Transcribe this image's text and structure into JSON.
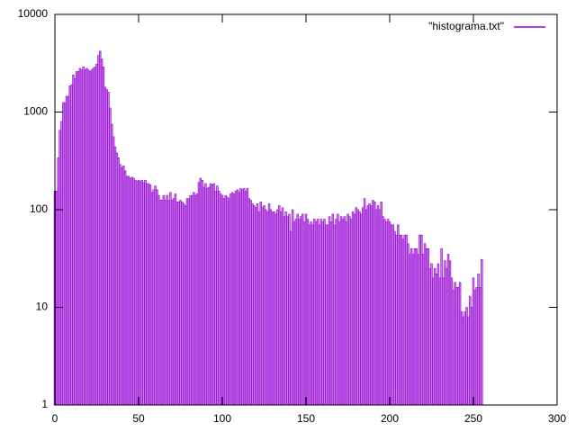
{
  "chart_data": {
    "type": "bar",
    "legend": "\"histograma.txt\"",
    "legend_position": "top-right",
    "color": "#9400d3",
    "log_y": true,
    "x": [
      0,
      1,
      2,
      3,
      4,
      5,
      6,
      7,
      8,
      9,
      10,
      11,
      12,
      13,
      14,
      15,
      16,
      17,
      18,
      19,
      20,
      21,
      22,
      23,
      24,
      25,
      26,
      27,
      28,
      29,
      30,
      31,
      32,
      33,
      34,
      35,
      36,
      37,
      38,
      39,
      40,
      41,
      42,
      43,
      44,
      45,
      46,
      47,
      48,
      49,
      50,
      51,
      52,
      53,
      54,
      55,
      56,
      57,
      58,
      59,
      60,
      61,
      62,
      63,
      64,
      65,
      66,
      67,
      68,
      69,
      70,
      71,
      72,
      73,
      74,
      75,
      76,
      77,
      78,
      79,
      80,
      81,
      82,
      83,
      84,
      85,
      86,
      87,
      88,
      89,
      90,
      91,
      92,
      93,
      94,
      95,
      96,
      97,
      98,
      99,
      100,
      101,
      102,
      103,
      104,
      105,
      106,
      107,
      108,
      109,
      110,
      111,
      112,
      113,
      114,
      115,
      116,
      117,
      118,
      119,
      120,
      121,
      122,
      123,
      124,
      125,
      126,
      127,
      128,
      129,
      130,
      131,
      132,
      133,
      134,
      135,
      136,
      137,
      138,
      139,
      140,
      141,
      142,
      143,
      144,
      145,
      146,
      147,
      148,
      149,
      150,
      151,
      152,
      153,
      154,
      155,
      156,
      157,
      158,
      159,
      160,
      161,
      162,
      163,
      164,
      165,
      166,
      167,
      168,
      169,
      170,
      171,
      172,
      173,
      174,
      175,
      176,
      177,
      178,
      179,
      180,
      181,
      182,
      183,
      184,
      185,
      186,
      187,
      188,
      189,
      190,
      191,
      192,
      193,
      194,
      195,
      196,
      197,
      198,
      199,
      200,
      201,
      202,
      203,
      204,
      205,
      206,
      207,
      208,
      209,
      210,
      211,
      212,
      213,
      214,
      215,
      216,
      217,
      218,
      219,
      220,
      221,
      222,
      223,
      224,
      225,
      226,
      227,
      228,
      229,
      230,
      231,
      232,
      233,
      234,
      235,
      236,
      237,
      238,
      239,
      240,
      241,
      242,
      243,
      244,
      245,
      246,
      247,
      248,
      249,
      250,
      251,
      252,
      253,
      254,
      255
    ],
    "values": [
      155,
      155,
      340,
      650,
      800,
      1250,
      1250,
      1450,
      1450,
      1850,
      1900,
      2400,
      2200,
      2600,
      2600,
      2800,
      2700,
      2900,
      2700,
      2800,
      2700,
      2600,
      2700,
      2800,
      2900,
      3100,
      3800,
      4200,
      3500,
      2900,
      1800,
      1700,
      1600,
      1100,
      750,
      560,
      440,
      380,
      340,
      290,
      270,
      280,
      250,
      220,
      220,
      210,
      215,
      210,
      200,
      195,
      200,
      195,
      200,
      190,
      200,
      185,
      185,
      180,
      150,
      160,
      175,
      160,
      140,
      125,
      125,
      140,
      125,
      140,
      125,
      150,
      125,
      130,
      145,
      120,
      120,
      125,
      120,
      115,
      110,
      130,
      130,
      140,
      140,
      150,
      140,
      145,
      190,
      210,
      200,
      170,
      185,
      165,
      170,
      185,
      180,
      185,
      155,
      175,
      155,
      145,
      140,
      130,
      140,
      135,
      130,
      145,
      150,
      145,
      155,
      160,
      150,
      165,
      160,
      165,
      155,
      165,
      130,
      125,
      115,
      110,
      105,
      115,
      95,
      120,
      105,
      110,
      100,
      95,
      115,
      100,
      95,
      95,
      90,
      100,
      110,
      95,
      105,
      85,
      95,
      85,
      90,
      60,
      100,
      75,
      80,
      90,
      80,
      85,
      90,
      75,
      90,
      80,
      70,
      75,
      70,
      80,
      75,
      80,
      70,
      80,
      75,
      80,
      70,
      70,
      85,
      75,
      90,
      70,
      80,
      90,
      75,
      85,
      80,
      85,
      75,
      90,
      85,
      80,
      95,
      90,
      105,
      100,
      95,
      90,
      105,
      130,
      100,
      110,
      115,
      110,
      125,
      120,
      100,
      110,
      100,
      120,
      85,
      80,
      75,
      80,
      75,
      70,
      70,
      60,
      55,
      70,
      55,
      55,
      50,
      55,
      55,
      45,
      35,
      40,
      35,
      40,
      40,
      35,
      55,
      55,
      35,
      45,
      40,
      40,
      25,
      28,
      20,
      25,
      22,
      28,
      20,
      40,
      20,
      30,
      25,
      35,
      30,
      20,
      15,
      18,
      16,
      16,
      18,
      9,
      8,
      9,
      10,
      8,
      13,
      10,
      20,
      15,
      16,
      22,
      16,
      31
    ],
    "xlim": [
      0,
      300
    ],
    "xticks": [
      0,
      50,
      100,
      150,
      200,
      250,
      300
    ],
    "ylim": [
      1,
      10000
    ],
    "yticks": [
      1,
      10,
      100,
      1000,
      10000
    ]
  }
}
